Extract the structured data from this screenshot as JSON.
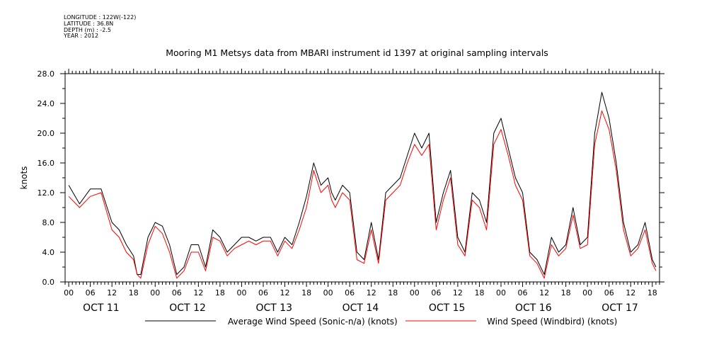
{
  "header": {
    "meta_lines": [
      "LONGITUDE : 122W(-122)",
      "LATITUDE : 36.8N",
      "DEPTH (m) : -2.5",
      "YEAR : 2012"
    ],
    "title": "Mooring M1 Metsys data from MBARI instrument id 1397 at original sampling intervals"
  },
  "chart_data": {
    "type": "line",
    "title": "Mooring M1 Metsys data from MBARI instrument id 1397 at original sampling intervals",
    "ylabel": "knots",
    "xlabel": "",
    "ylim": [
      0,
      28
    ],
    "yticks": [
      "0.0",
      "4.0",
      "8.0",
      "12.0",
      "16.0",
      "20.0",
      "24.0",
      "28.0"
    ],
    "x_unit": "hours since OCT 11 00:00",
    "xlim": [
      -1,
      164
    ],
    "hour_ticks": [
      "00",
      "06",
      "12",
      "18"
    ],
    "day_labels": [
      "OCT 11",
      "OCT 12",
      "OCT 13",
      "OCT 14",
      "OCT 15",
      "OCT 16",
      "OCT 17"
    ],
    "grid": false,
    "legend_position": "bottom",
    "x": [
      0,
      3,
      6,
      9,
      12,
      14,
      16,
      18,
      19,
      20,
      22,
      24,
      26,
      28,
      30,
      32,
      34,
      36,
      38,
      40,
      42,
      44,
      46,
      48,
      50,
      52,
      54,
      56,
      58,
      60,
      62,
      64,
      66,
      68,
      70,
      72,
      73,
      74,
      76,
      78,
      80,
      82,
      84,
      86,
      88,
      90,
      92,
      94,
      96,
      98,
      100,
      102,
      104,
      106,
      108,
      110,
      112,
      114,
      116,
      118,
      120,
      122,
      124,
      126,
      128,
      130,
      132,
      134,
      136,
      138,
      140,
      142,
      144,
      146,
      148,
      150,
      152,
      154,
      156,
      158,
      160,
      162,
      163
    ],
    "series": [
      {
        "name": "Average Wind Speed (Sonic-n/a) (knots)",
        "color": "#000000",
        "values": [
          13,
          10.5,
          12.5,
          12.5,
          8,
          7,
          5,
          3.5,
          1,
          1,
          6,
          8,
          7.5,
          5,
          1,
          2,
          5,
          5,
          2,
          7,
          6,
          4,
          5,
          6,
          6,
          5.5,
          6,
          6,
          4,
          6,
          5,
          8,
          11.5,
          16,
          13,
          14,
          12,
          11,
          13,
          12,
          4,
          3,
          8,
          3,
          12,
          13,
          14,
          17,
          20,
          18,
          20,
          8,
          12,
          15,
          6,
          4,
          12,
          11,
          8,
          20,
          22,
          18,
          14,
          12,
          4,
          3,
          1,
          6,
          4,
          5,
          10,
          5,
          6,
          20,
          25.5,
          22,
          16,
          8,
          4,
          5,
          8,
          3,
          2
        ]
      },
      {
        "name": "Wind Speed (Windbird) (knots)",
        "color": "#ff0000",
        "values": [
          11.5,
          10,
          11.5,
          12,
          7,
          6,
          4,
          3,
          1,
          0.5,
          5,
          7.5,
          6.5,
          4,
          0.5,
          1.5,
          4,
          4,
          1.5,
          6,
          5.5,
          3.5,
          4.5,
          5,
          5.5,
          5,
          5.5,
          5.5,
          3.5,
          5.5,
          4.5,
          7,
          10,
          15,
          12,
          13,
          11,
          10,
          12,
          11,
          3,
          2.5,
          7,
          2.5,
          11,
          12,
          13,
          16,
          18.5,
          17,
          18.5,
          7,
          11,
          14,
          5,
          3.5,
          11,
          10,
          7,
          18.5,
          20.5,
          17,
          13,
          11,
          3.5,
          2.5,
          0.5,
          5,
          3.5,
          4.5,
          9,
          4.5,
          5,
          18.5,
          23,
          20.5,
          15,
          7,
          3.5,
          4.5,
          7,
          2.5,
          1.5
        ]
      }
    ]
  },
  "legend": {
    "items": [
      {
        "label": "Average Wind Speed (Sonic-n/a) (knots)",
        "color": "#000000"
      },
      {
        "label": "Wind Speed (Windbird) (knots)",
        "color": "#ff0000"
      }
    ]
  }
}
